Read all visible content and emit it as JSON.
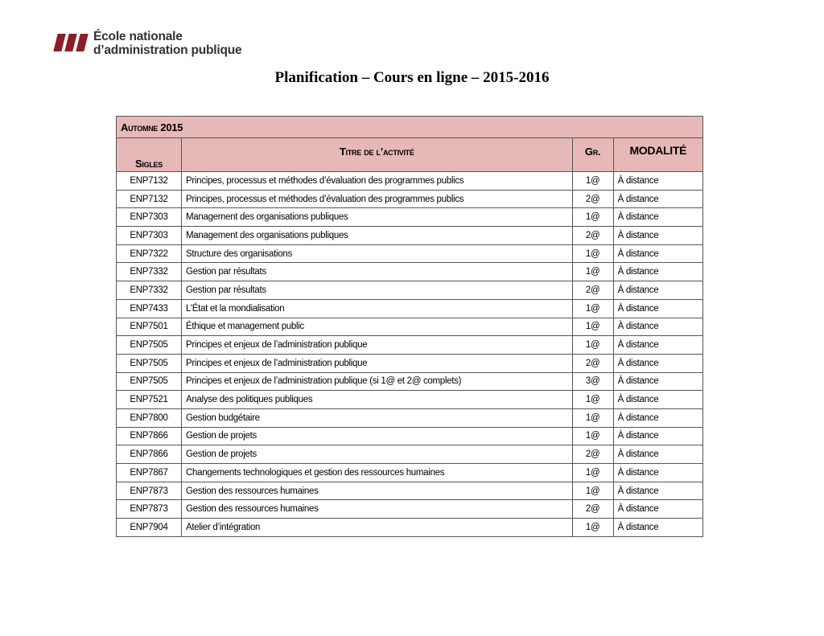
{
  "logo": {
    "line1": "École nationale",
    "line2": "d’administration publique",
    "color": "#8b1e24"
  },
  "title": "Planification – Cours en ligne – 2015-2016",
  "table": {
    "section": "Automne 2015",
    "header_color": "#e6b8b7",
    "columns": [
      "Sigles",
      "Titre de l’activité",
      "Gr.",
      "MODALITÉ"
    ],
    "rows": [
      [
        "ENP7132",
        "Principes, processus et méthodes d’évaluation des programmes publics",
        "1@",
        "À distance"
      ],
      [
        "ENP7132",
        "Principes, processus et méthodes d’évaluation des programmes publics",
        "2@",
        "À distance"
      ],
      [
        "ENP7303",
        "Management des organisations publiques",
        "1@",
        "À distance"
      ],
      [
        "ENP7303",
        "Management des organisations publiques",
        "2@",
        "À distance"
      ],
      [
        "ENP7322",
        "Structure des organisations",
        "1@",
        "À distance"
      ],
      [
        "ENP7332",
        "Gestion par résultats",
        "1@",
        "À distance"
      ],
      [
        "ENP7332",
        "Gestion par résultats",
        "2@",
        "À distance"
      ],
      [
        "ENP7433",
        "L’État et la mondialisation",
        "1@",
        "À distance"
      ],
      [
        "ENP7501",
        "Éthique et management public",
        "1@",
        "À distance"
      ],
      [
        "ENP7505",
        "Principes et enjeux de l’administration publique",
        "1@",
        "À distance"
      ],
      [
        "ENP7505",
        "Principes et enjeux de l’administration publique",
        "2@",
        "À distance"
      ],
      [
        "ENP7505",
        "Principes et enjeux de l’administration publique  (si 1@ et 2@ complets)",
        "3@",
        "À distance"
      ],
      [
        "ENP7521",
        "Analyse des politiques publiques",
        "1@",
        "À distance"
      ],
      [
        "ENP7800",
        "Gestion budgétaire",
        "1@",
        "À distance"
      ],
      [
        "ENP7866",
        "Gestion de projets",
        "1@",
        "À distance"
      ],
      [
        "ENP7866",
        "Gestion de projets",
        "2@",
        "À distance"
      ],
      [
        "ENP7867",
        "Changements technologiques et gestion des ressources humaines",
        "1@",
        "À distance"
      ],
      [
        "ENP7873",
        "Gestion des ressources humaines",
        "1@",
        "À distance"
      ],
      [
        "ENP7873",
        "Gestion des ressources humaines",
        "2@",
        "À distance"
      ],
      [
        "ENP7904",
        "Atelier d’intégration",
        "1@",
        "À distance"
      ]
    ]
  }
}
